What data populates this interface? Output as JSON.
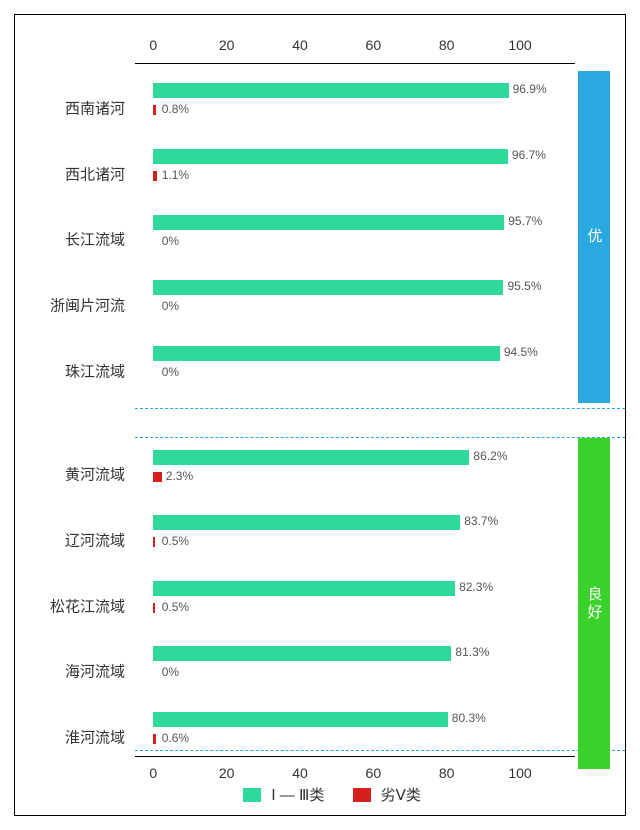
{
  "chart": {
    "type": "bar",
    "xlim": [
      -5,
      115
    ],
    "ticks": [
      0,
      20,
      40,
      60,
      80,
      100
    ],
    "colors": {
      "series_good": "#30d99a",
      "series_bad": "#d6201e",
      "band_excellent_bg": "#2aa9e0",
      "band_good_bg": "#3bd12b",
      "sep_dash": "#2aa9e0",
      "text": "#333333",
      "value_text": "#555555",
      "background": "#ffffff"
    },
    "fontsize": {
      "label": 15,
      "tick": 14,
      "value": 12,
      "legend": 15
    },
    "bar_height_good": 15,
    "bar_height_bad": 10,
    "groups": [
      {
        "band_label": "优",
        "band_color": "#2aa9e0",
        "rows": [
          {
            "label": "西南诸河",
            "good": 96.9,
            "bad": 0.8
          },
          {
            "label": "西北诸河",
            "good": 96.7,
            "bad": 1.1
          },
          {
            "label": "长江流域",
            "good": 95.7,
            "bad": 0.0
          },
          {
            "label": "浙闽片河流",
            "good": 95.5,
            "bad": 0.0
          },
          {
            "label": "珠江流域",
            "good": 94.5,
            "bad": 0.0
          }
        ]
      },
      {
        "band_label": "良好",
        "band_color": "#3bd12b",
        "rows": [
          {
            "label": "黄河流域",
            "good": 86.2,
            "bad": 2.3
          },
          {
            "label": "辽河流域",
            "good": 83.7,
            "bad": 0.5
          },
          {
            "label": "松花江流域",
            "good": 82.3,
            "bad": 0.5
          },
          {
            "label": "海河流域",
            "good": 81.3,
            "bad": 0.0
          },
          {
            "label": "淮河流域",
            "good": 80.3,
            "bad": 0.6
          }
        ]
      }
    ],
    "legend": {
      "good": "Ⅰ — Ⅲ类",
      "bad": "劣Ⅴ类"
    }
  }
}
